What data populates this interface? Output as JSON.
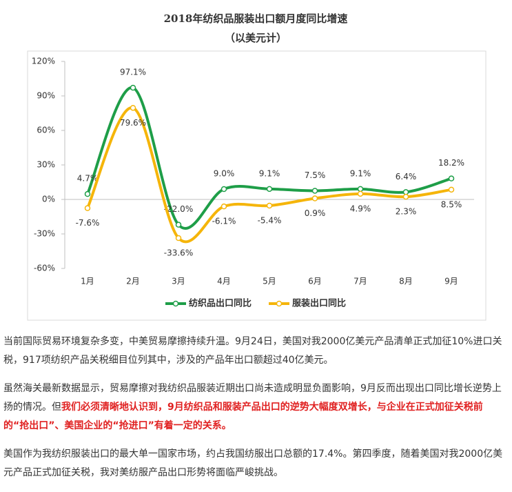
{
  "chart_data": {
    "type": "line",
    "title": "2018年纺织品服装出口额月度同比增速",
    "subtitle": "（以美元计）",
    "categories": [
      "1月",
      "2月",
      "3月",
      "4月",
      "5月",
      "6月",
      "7月",
      "8月",
      "9月"
    ],
    "series": [
      {
        "name": "纺织品出口同比",
        "color": "#1e9e48",
        "values": [
          4.7,
          97.1,
          -22.0,
          9.0,
          9.1,
          7.5,
          9.1,
          6.4,
          18.2
        ],
        "value_labels": [
          "4.7%",
          "97.1%",
          "-22.0%",
          "9.0%",
          "9.1%",
          "7.5%",
          "9.1%",
          "6.4%",
          "18.2%"
        ]
      },
      {
        "name": "服装出口同比",
        "color": "#f5b50a",
        "values": [
          -7.6,
          79.6,
          -33.6,
          -6.1,
          -5.4,
          0.9,
          4.9,
          2.3,
          8.5
        ],
        "value_labels": [
          "-7.6%",
          "79.6%",
          "-33.6%",
          "-6.1%",
          "-5.4%",
          "0.9%",
          "4.9%",
          "2.3%",
          "8.5%"
        ]
      }
    ],
    "ylim": [
      -60,
      120
    ],
    "yticks": [
      {
        "value": -60,
        "label": "-60%"
      },
      {
        "value": -30,
        "label": "-30%"
      },
      {
        "value": 0,
        "label": "0%"
      },
      {
        "value": 30,
        "label": "30%"
      },
      {
        "value": 60,
        "label": "60%"
      },
      {
        "value": 90,
        "label": "90%"
      },
      {
        "value": 120,
        "label": "120%"
      }
    ],
    "legend": "bottom"
  },
  "article": {
    "paragraphs": [
      [
        "当前国际贸易环境复杂多变，中美贸易摩擦持续升温。9月24日，美国对我2000亿美元产品清单正式加征10%进口关税，917项纺织产品关税细目位列其中，涉及的产品年出口额超过40亿美元。"
      ],
      [
        "虽然海关最新数据显示，贸易摩擦对我纺织品服装近期出口尚未造成明显负面影响，9月反而出现出口同比增长逆势上扬的情况。但",
        "我们必须清晰地认识到，9月纺织品和服装产品出口的逆势大幅度双增长，与企业在正式加征关税前的“抢出口”、美国企业的“抢进口”有着一定的关系。"
      ],
      [
        "美国作为我纺织服装出口的最大单一国家市场，约占我国纺服出口总额的17.4%。第四季度，随着美国对我2000亿美元产品正式加征关税，我对美纺服产品出口形势将面临严峻挑战。"
      ]
    ]
  }
}
